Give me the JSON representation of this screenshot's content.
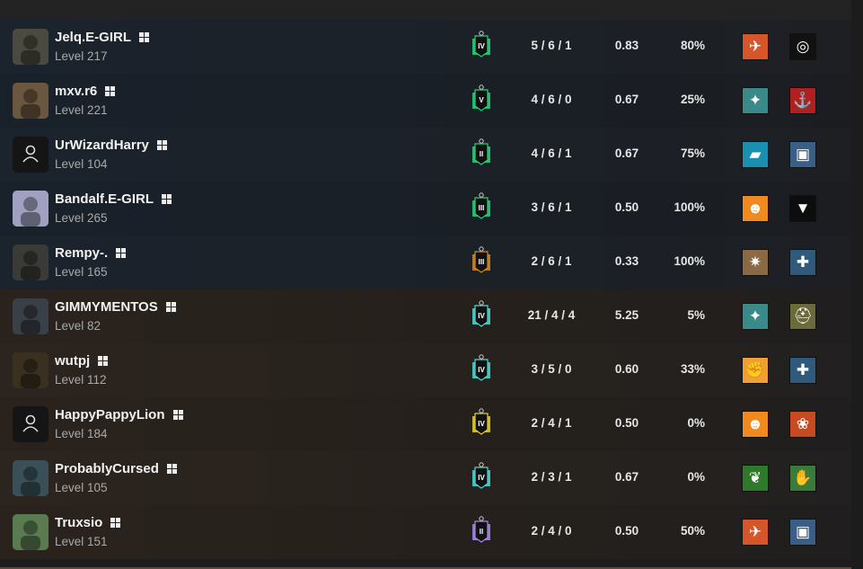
{
  "colors": {
    "team_blue": "#1b232c",
    "team_orange": "#2c241e"
  },
  "players": [
    {
      "team": 1,
      "name": "Jelq.E-GIRL",
      "level": "Level 217",
      "platform": "windows-icon",
      "avatar": "#4a4a40",
      "rank_color": "#2ecf7a",
      "rank": "IV",
      "kda": "5 / 6 / 1",
      "kd": "0.83",
      "pct": "80%",
      "ops": [
        {
          "icon": "attacker-operator-icon",
          "bg": "#d4562a",
          "glyph": "✈"
        },
        {
          "icon": "defender-operator-icon",
          "bg": "#111",
          "glyph": "◎"
        }
      ]
    },
    {
      "team": 1,
      "name": "mxv.r6",
      "level": "Level 221",
      "platform": "windows-icon",
      "avatar": "#6b5640",
      "rank_color": "#2ecf7a",
      "rank": "V",
      "kda": "4 / 6 / 0",
      "kd": "0.67",
      "pct": "25%",
      "ops": [
        {
          "icon": "attacker-operator-icon",
          "bg": "#3a8a8a",
          "glyph": "✦"
        },
        {
          "icon": "defender-operator-icon",
          "bg": "#b02020",
          "glyph": "⚓"
        }
      ]
    },
    {
      "team": 1,
      "name": "UrWizardHarry",
      "level": "Level 104",
      "platform": "windows-icon",
      "avatar": "#151515",
      "default_avatar": true,
      "rank_color": "#2ecf7a",
      "rank": "II",
      "kda": "4 / 6 / 1",
      "kd": "0.67",
      "pct": "75%",
      "ops": [
        {
          "icon": "attacker-operator-icon",
          "bg": "#1a8fb0",
          "glyph": "▰"
        },
        {
          "icon": "defender-operator-icon",
          "bg": "#3a5f86",
          "glyph": "▣"
        }
      ]
    },
    {
      "team": 1,
      "name": "Bandalf.E-GIRL",
      "level": "Level 265",
      "platform": "windows-icon",
      "avatar": "#a0a0c0",
      "rank_color": "#2ecf7a",
      "rank": "III",
      "kda": "3 / 6 / 1",
      "kd": "0.50",
      "pct": "100%",
      "ops": [
        {
          "icon": "attacker-operator-icon",
          "bg": "#f08a20",
          "glyph": "☻"
        },
        {
          "icon": "defender-operator-icon",
          "bg": "#0d0d0d",
          "glyph": "▼"
        }
      ]
    },
    {
      "team": 1,
      "name": "Rempy-.",
      "level": "Level 165",
      "platform": "windows-icon",
      "avatar": "#3a3a36",
      "rank_color": "#d08a28",
      "rank": "III",
      "kda": "2 / 6 / 1",
      "kd": "0.33",
      "pct": "100%",
      "ops": [
        {
          "icon": "attacker-operator-icon",
          "bg": "#8a6a44",
          "glyph": "✷"
        },
        {
          "icon": "defender-operator-icon",
          "bg": "#2f5a7c",
          "glyph": "✚"
        }
      ]
    },
    {
      "team": 2,
      "name": "GIMMYMENTOS",
      "level": "Level 82",
      "platform": "windows-icon",
      "avatar": "#3a4048",
      "rank_color": "#4fd8d0",
      "rank": "IV",
      "kda": "21 / 4 / 4",
      "kd": "5.25",
      "pct": "5%",
      "ops": [
        {
          "icon": "attacker-operator-icon",
          "bg": "#3a8a8a",
          "glyph": "✦"
        },
        {
          "icon": "defender-operator-icon",
          "bg": "#6b6a3a",
          "glyph": "⛑"
        }
      ]
    },
    {
      "team": 2,
      "name": "wutpj",
      "level": "Level 112",
      "platform": "windows-icon",
      "avatar": "#3a3020",
      "rank_color": "#4fd8d0",
      "rank": "IV",
      "kda": "3 / 5 / 0",
      "kd": "0.60",
      "pct": "33%",
      "ops": [
        {
          "icon": "attacker-operator-icon",
          "bg": "#f0a030",
          "glyph": "✊"
        },
        {
          "icon": "defender-operator-icon",
          "bg": "#2f5a7c",
          "glyph": "✚"
        }
      ]
    },
    {
      "team": 2,
      "name": "HappyPappyLion",
      "level": "Level 184",
      "platform": "windows-icon",
      "avatar": "#151515",
      "default_avatar": true,
      "rank_color": "#e8d030",
      "rank": "IV",
      "kda": "2 / 4 / 1",
      "kd": "0.50",
      "pct": "0%",
      "ops": [
        {
          "icon": "attacker-operator-icon",
          "bg": "#f08a20",
          "glyph": "☻"
        },
        {
          "icon": "defender-operator-icon",
          "bg": "#c84a20",
          "glyph": "❀"
        }
      ]
    },
    {
      "team": 2,
      "name": "ProbablyCursed",
      "level": "Level 105",
      "platform": "windows-icon",
      "avatar": "#3a5058",
      "rank_color": "#4fd8d0",
      "rank": "IV",
      "kda": "2 / 3 / 1",
      "kd": "0.67",
      "pct": "0%",
      "ops": [
        {
          "icon": "attacker-operator-icon",
          "bg": "#2f7a2a",
          "glyph": "❦"
        },
        {
          "icon": "defender-operator-icon",
          "bg": "#3a7a3a",
          "glyph": "✋"
        }
      ]
    },
    {
      "team": 2,
      "name": "Truxsio",
      "level": "Level 151",
      "platform": "windows-icon",
      "avatar": "#5a7a50",
      "rank_color": "#a88ae8",
      "rank": "II",
      "kda": "2 / 4 / 0",
      "kd": "0.50",
      "pct": "50%",
      "ops": [
        {
          "icon": "attacker-operator-icon",
          "bg": "#d4562a",
          "glyph": "✈"
        },
        {
          "icon": "defender-operator-icon",
          "bg": "#3a5f86",
          "glyph": "▣"
        }
      ]
    }
  ]
}
